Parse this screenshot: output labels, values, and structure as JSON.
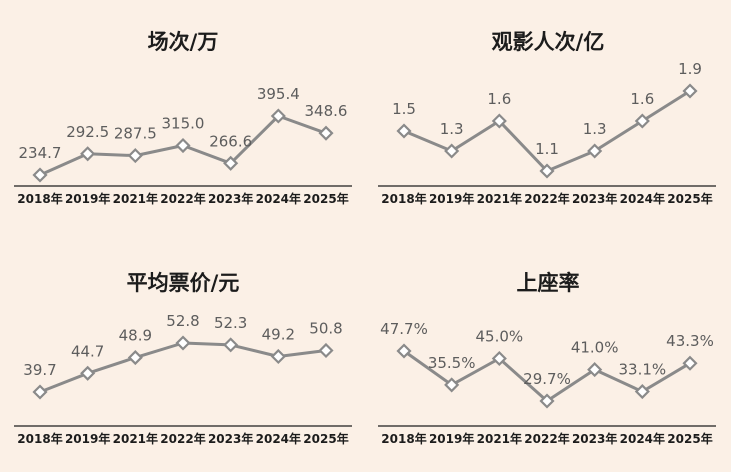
{
  "colors": {
    "background": "#fbf0e6",
    "line": "#8a8a8a",
    "axis": "#1c1c1c",
    "marker_fill": "#ffffff"
  },
  "chart_data": [
    {
      "type": "line",
      "title": "场次/万",
      "categories": [
        "2018年",
        "2019年",
        "2021年",
        "2022年",
        "2023年",
        "2024年",
        "2025年"
      ],
      "values": [
        234.7,
        292.5,
        287.5,
        315.0,
        266.6,
        395.4,
        348.6
      ],
      "value_labels": [
        "234.7",
        "292.5",
        "287.5",
        "315.0",
        "266.6",
        "395.4",
        "348.6"
      ]
    },
    {
      "type": "line",
      "title": "观影人次/亿",
      "categories": [
        "2018年",
        "2019年",
        "2021年",
        "2022年",
        "2023年",
        "2024年",
        "2025年"
      ],
      "values": [
        1.5,
        1.3,
        1.6,
        1.1,
        1.3,
        1.6,
        1.9
      ],
      "value_labels": [
        "1.5",
        "1.3",
        "1.6",
        "1.1",
        "1.3",
        "1.6",
        "1.9"
      ]
    },
    {
      "type": "line",
      "title": "平均票价/元",
      "categories": [
        "2018年",
        "2019年",
        "2021年",
        "2022年",
        "2023年",
        "2024年",
        "2025年"
      ],
      "values": [
        39.7,
        44.7,
        48.9,
        52.8,
        52.3,
        49.2,
        50.8
      ],
      "value_labels": [
        "39.7",
        "44.7",
        "48.9",
        "52.8",
        "52.3",
        "49.2",
        "50.8"
      ]
    },
    {
      "type": "line",
      "title": "上座率",
      "categories": [
        "2018年",
        "2019年",
        "2021年",
        "2022年",
        "2023年",
        "2024年",
        "2025年"
      ],
      "values": [
        47.7,
        35.5,
        45.0,
        29.7,
        41.0,
        33.1,
        43.3
      ],
      "value_labels": [
        "47.7%",
        "35.5%",
        "45.0%",
        "29.7%",
        "41.0%",
        "33.1%",
        "43.3%"
      ]
    }
  ]
}
